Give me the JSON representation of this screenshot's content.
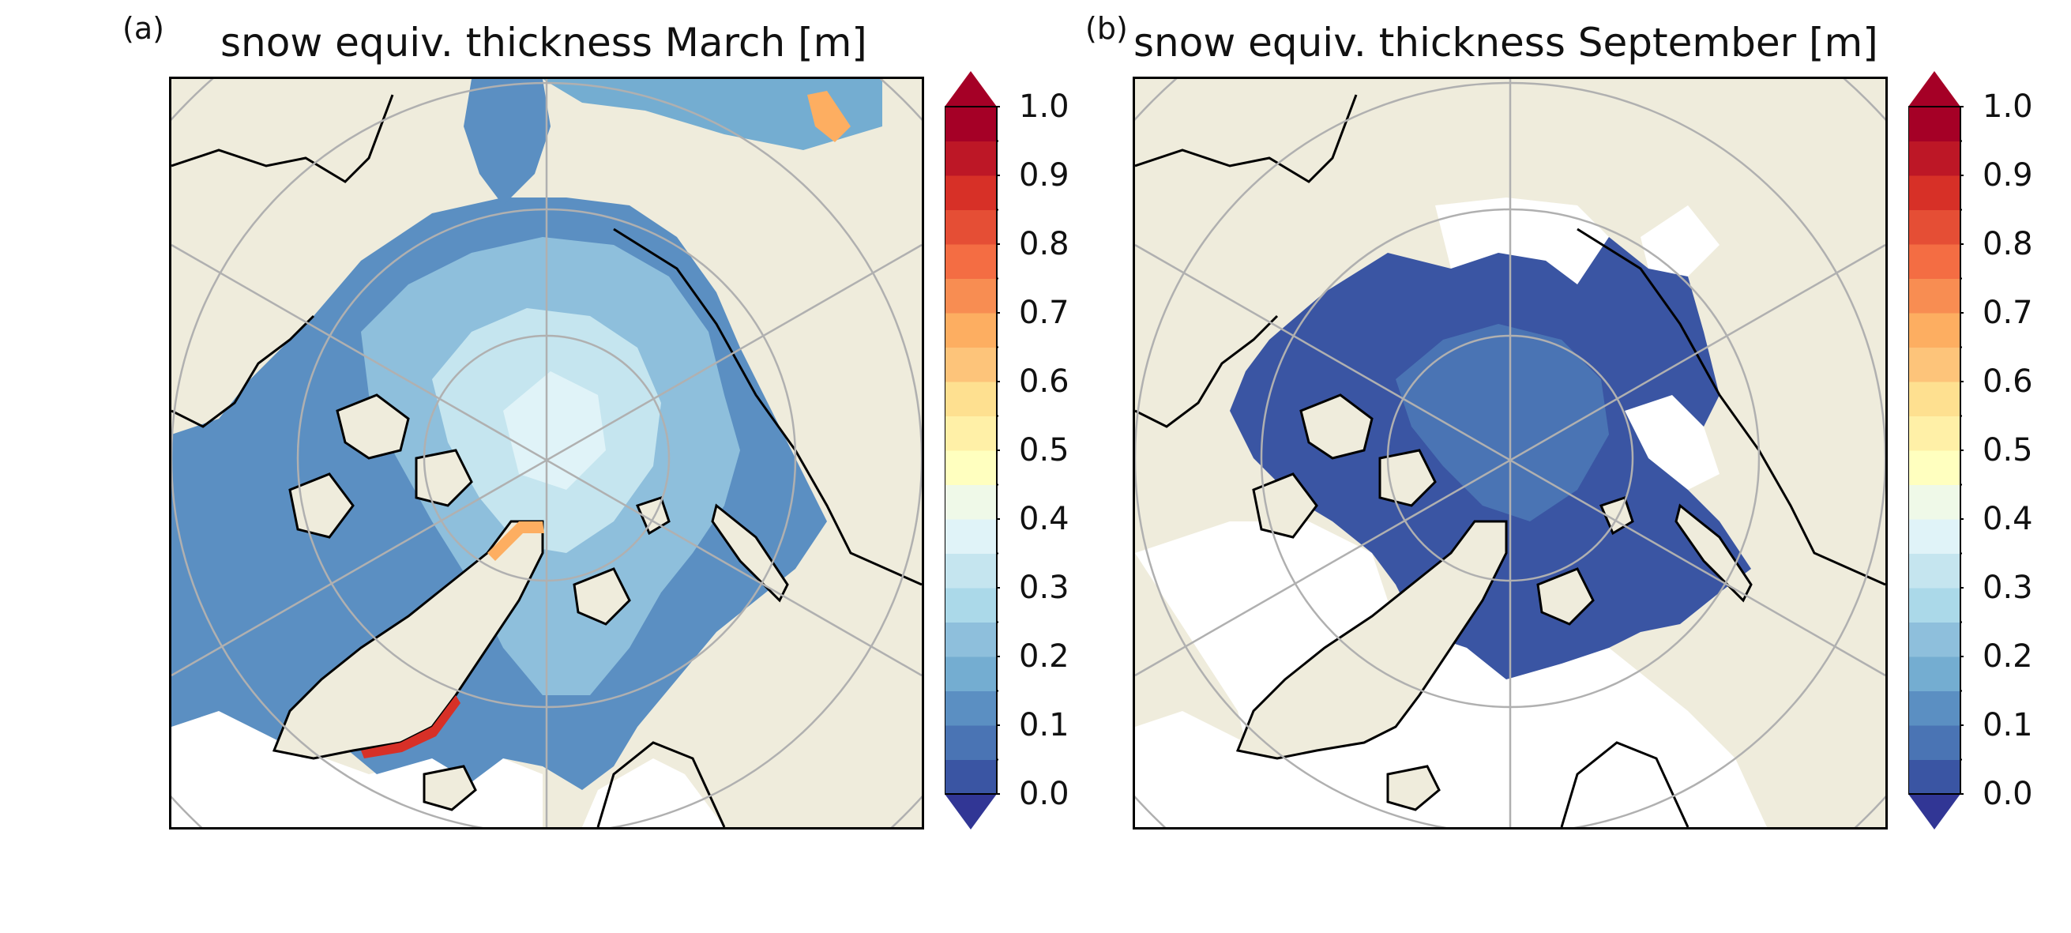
{
  "panels": [
    {
      "letter": "(a)",
      "title": "snow equiv. thickness March [m]",
      "month": "March"
    },
    {
      "letter": "(b)",
      "title": "snow equiv. thickness September [m]",
      "month": "September"
    }
  ],
  "colorbar": {
    "min": 0.0,
    "max": 1.0,
    "step": 0.05,
    "extend": "both",
    "tick_labels": [
      "0.0",
      "0.1",
      "0.2",
      "0.3",
      "0.4",
      "0.5",
      "0.6",
      "0.7",
      "0.8",
      "0.9",
      "1.0"
    ],
    "colormap": "RdYlBu_r",
    "colors": [
      "#313695",
      "#3a55a3",
      "#4a74b4",
      "#5b8fc2",
      "#74add1",
      "#8ebfdc",
      "#abd9e9",
      "#c5e5ef",
      "#e0f3f8",
      "#eff9e8",
      "#ffffbf",
      "#fff0a7",
      "#fee090",
      "#fdc47a",
      "#fdae61",
      "#f88d52",
      "#f46d43",
      "#e54e35",
      "#d73027",
      "#bd1726",
      "#a50026"
    ],
    "over_color": "#a50026",
    "under_color": "#313695"
  },
  "colors": {
    "land": "#efecdc",
    "ocean_no_ice": "#ffffff",
    "coastline": "#000000",
    "graticule": "#b0b0b0"
  }
}
